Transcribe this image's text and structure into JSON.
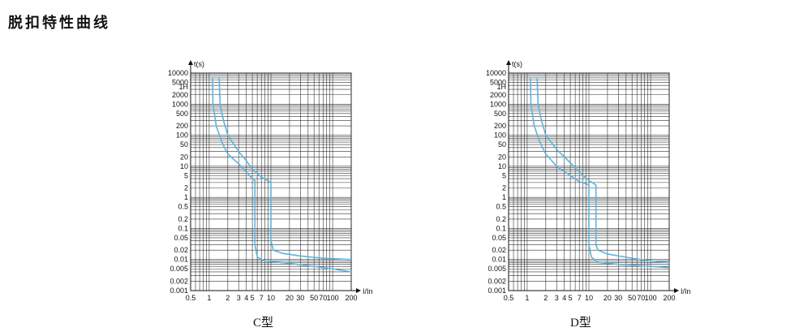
{
  "page": {
    "title": "脱扣特性曲线"
  },
  "charts": [
    {
      "id": "c",
      "caption": "C型"
    },
    {
      "id": "d",
      "caption": "D型"
    }
  ],
  "chart_data": [
    {
      "type": "line",
      "title": "C型",
      "ylabel": "t(s)",
      "xlabel": "I/In",
      "xscale": "log",
      "yscale": "log",
      "xlim": [
        0.5,
        200
      ],
      "ylim": [
        0.001,
        10000
      ],
      "x_ticks": [
        "0.5",
        "1",
        "2",
        "3",
        "4",
        "5",
        "7",
        "10",
        "20",
        "30",
        "50",
        "70",
        "100",
        "200"
      ],
      "y_ticks": [
        "10000",
        "5000",
        "1H",
        "2000",
        "1000",
        "500",
        "200",
        "100",
        "50",
        "20",
        "10",
        "5",
        "2",
        "1",
        "0.5",
        "0.2",
        "0.1",
        "0.05",
        "0.02",
        "0.01",
        "0.005",
        "0.002",
        "0.001"
      ],
      "grid": true,
      "color": "#5ab4e0",
      "series": [
        {
          "points": [
            [
              1.13,
              7000
            ],
            [
              1.15,
              1000
            ],
            [
              1.3,
              200
            ],
            [
              1.6,
              60
            ],
            [
              2,
              25
            ],
            [
              3,
              12
            ],
            [
              4,
              6.5
            ],
            [
              5,
              4
            ],
            [
              5.5,
              3.5
            ],
            [
              5.5,
              0.03
            ],
            [
              6,
              0.012
            ],
            [
              8,
              0.009
            ],
            [
              20,
              0.0075
            ],
            [
              50,
              0.006
            ],
            [
              100,
              0.005
            ],
            [
              200,
              0.004
            ]
          ]
        },
        {
          "points": [
            [
              1.45,
              7000
            ],
            [
              1.5,
              1000
            ],
            [
              1.7,
              300
            ],
            [
              2,
              100
            ],
            [
              3,
              30
            ],
            [
              4,
              15
            ],
            [
              5,
              8
            ],
            [
              7,
              4.5
            ],
            [
              10,
              3
            ],
            [
              10,
              0.04
            ],
            [
              11,
              0.02
            ],
            [
              15,
              0.016
            ],
            [
              30,
              0.013
            ],
            [
              70,
              0.011
            ],
            [
              200,
              0.01
            ]
          ]
        }
      ]
    },
    {
      "type": "line",
      "title": "D型",
      "ylabel": "t(s)",
      "xlabel": "I/In",
      "xscale": "log",
      "yscale": "log",
      "xlim": [
        0.5,
        200
      ],
      "ylim": [
        0.001,
        10000
      ],
      "x_ticks": [
        "0.5",
        "1",
        "2",
        "3",
        "4",
        "5",
        "7",
        "10",
        "20",
        "30",
        "50",
        "70",
        "100",
        "200"
      ],
      "y_ticks": [
        "10000",
        "5000",
        "1H",
        "2000",
        "1000",
        "500",
        "200",
        "100",
        "50",
        "20",
        "10",
        "5",
        "2",
        "1",
        "0.5",
        "0.2",
        "0.1",
        "0.05",
        "0.02",
        "0.01",
        "0.005",
        "0.002",
        "0.001"
      ],
      "grid": true,
      "color": "#5ab4e0",
      "series": [
        {
          "points": [
            [
              1.13,
              7000
            ],
            [
              1.15,
              1000
            ],
            [
              1.3,
              200
            ],
            [
              1.6,
              60
            ],
            [
              2,
              25
            ],
            [
              3,
              10
            ],
            [
              5,
              5
            ],
            [
              7,
              3.2
            ],
            [
              10,
              2.5
            ],
            [
              10,
              0.03
            ],
            [
              11,
              0.012
            ],
            [
              14,
              0.008
            ],
            [
              30,
              0.007
            ],
            [
              100,
              0.006
            ],
            [
              200,
              0.0055
            ]
          ]
        },
        {
          "points": [
            [
              1.45,
              7000
            ],
            [
              1.5,
              1000
            ],
            [
              1.7,
              300
            ],
            [
              2,
              100
            ],
            [
              3,
              35
            ],
            [
              5,
              13
            ],
            [
              7,
              6.5
            ],
            [
              10,
              3.5
            ],
            [
              13,
              2.5
            ],
            [
              13,
              0.03
            ],
            [
              14,
              0.02
            ],
            [
              20,
              0.015
            ],
            [
              50,
              0.011
            ],
            [
              100,
              0.009
            ],
            [
              200,
              0.008
            ]
          ]
        }
      ]
    }
  ]
}
